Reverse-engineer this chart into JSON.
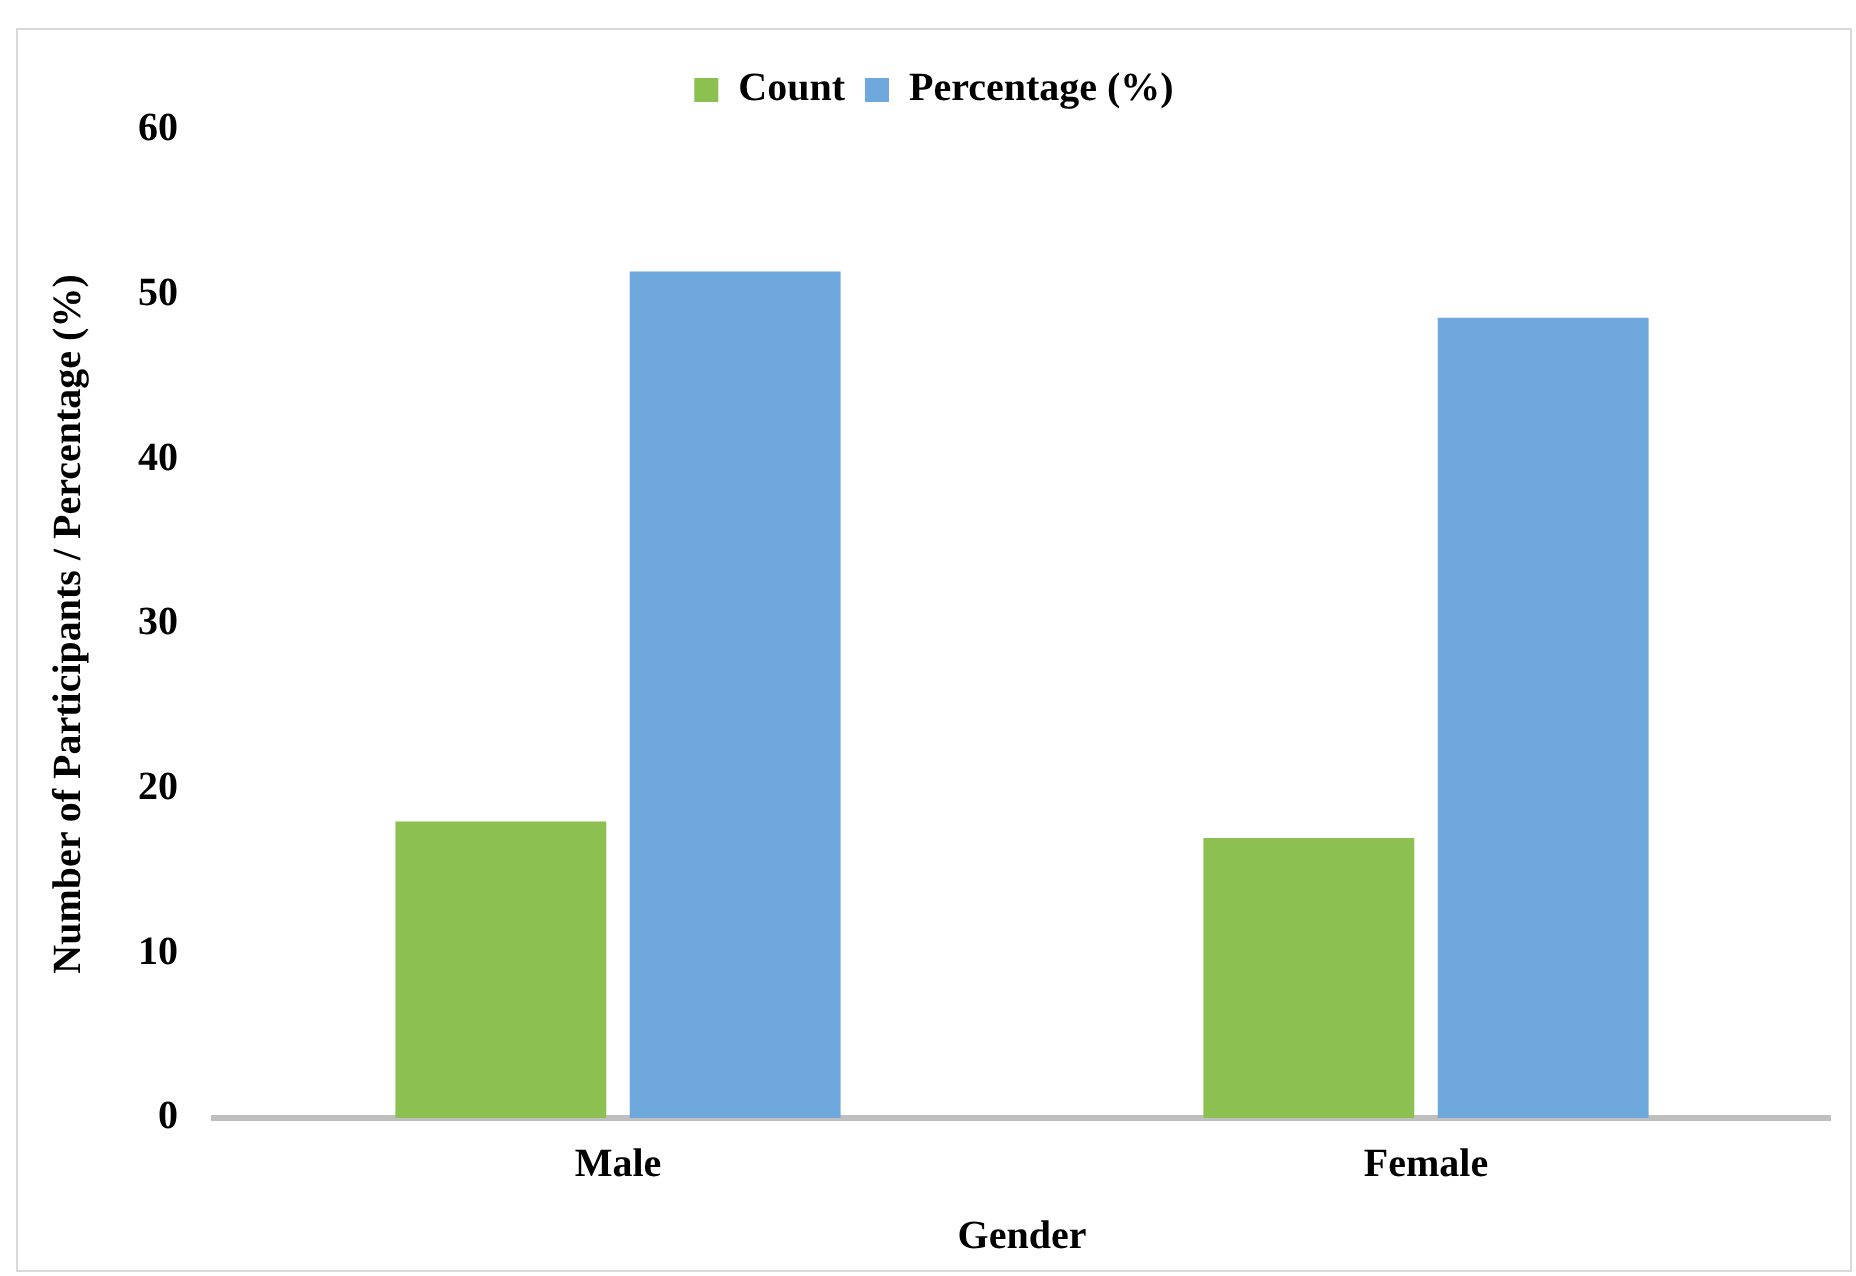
{
  "chart_data": {
    "type": "bar",
    "xlabel": "Gender",
    "ylabel": "Number of Participants / Percentage (%)",
    "categories": [
      "Male",
      "Female"
    ],
    "series": [
      {
        "name": "Count",
        "color": "#8cc152",
        "values": [
          18,
          17
        ]
      },
      {
        "name": "Percentage (%)",
        "color": "#6fa8dc",
        "values": [
          51.4,
          48.6
        ]
      }
    ],
    "ylim": [
      0,
      60
    ],
    "yticks": [
      0,
      10,
      20,
      30,
      40,
      50,
      60
    ],
    "grid": false,
    "legend": "top"
  }
}
